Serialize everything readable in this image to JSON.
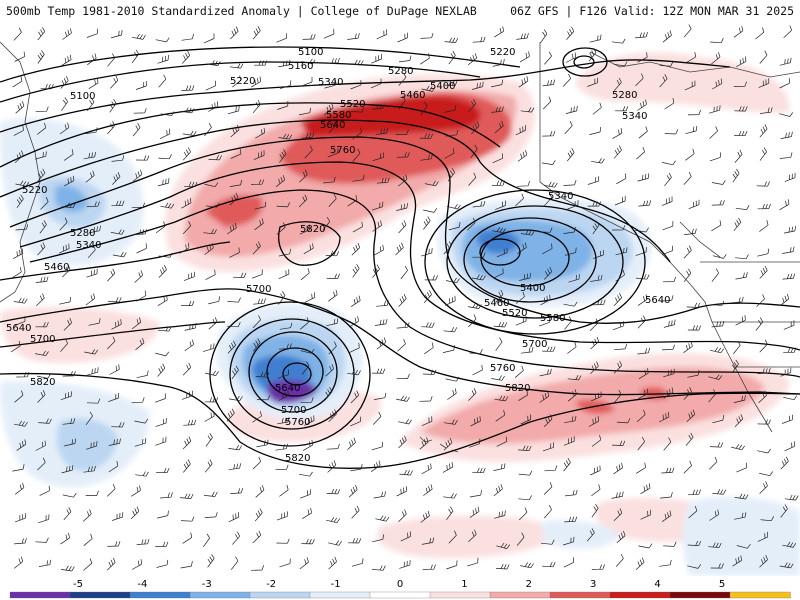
{
  "header": {
    "left_title": "500mb Temp 1981-2010 Standardized Anomaly | College of DuPage NEXLAB",
    "right_title": "06Z GFS | F126 Valid: 12Z MON MAR 31 2025"
  },
  "contour_labels": [
    {
      "text": "5100"
    },
    {
      "text": "5160"
    },
    {
      "text": "5220"
    },
    {
      "text": "5100"
    },
    {
      "text": "5220"
    },
    {
      "text": "5280"
    },
    {
      "text": "5340"
    },
    {
      "text": "5400"
    },
    {
      "text": "5460"
    },
    {
      "text": "5520"
    },
    {
      "text": "5580"
    },
    {
      "text": "5640"
    },
    {
      "text": "5760"
    },
    {
      "text": "5820"
    },
    {
      "text": "5220"
    },
    {
      "text": "5280"
    },
    {
      "text": "5340"
    },
    {
      "text": "5460"
    },
    {
      "text": "5640"
    },
    {
      "text": "5700"
    },
    {
      "text": "5820"
    },
    {
      "text": "5700"
    },
    {
      "text": "5640"
    },
    {
      "text": "5700"
    },
    {
      "text": "5760"
    },
    {
      "text": "5820"
    },
    {
      "text": "5340"
    },
    {
      "text": "5400"
    },
    {
      "text": "5460"
    },
    {
      "text": "5520"
    },
    {
      "text": "5580"
    },
    {
      "text": "5700"
    },
    {
      "text": "5760"
    },
    {
      "text": "5820"
    },
    {
      "text": "5640"
    },
    {
      "text": "5280"
    },
    {
      "text": "5340"
    },
    {
      "text": "5220"
    }
  ],
  "colorbar": {
    "ticks": [
      "-5",
      "-4",
      "-3",
      "-2",
      "-1",
      "0",
      "1",
      "2",
      "3",
      "4",
      "5"
    ],
    "colors": [
      "#6b2fa8",
      "#1f3f8a",
      "#3f7fd0",
      "#7fb2e6",
      "#bcd6f2",
      "#e4eef9",
      "#ffffff",
      "#fbe0e0",
      "#f2aaaa",
      "#e05a5a",
      "#c81e1e",
      "#7a0a0a",
      "#f4c020"
    ]
  },
  "colors": {
    "contour": "#000000",
    "border": "#444444",
    "barb": "#222222"
  }
}
